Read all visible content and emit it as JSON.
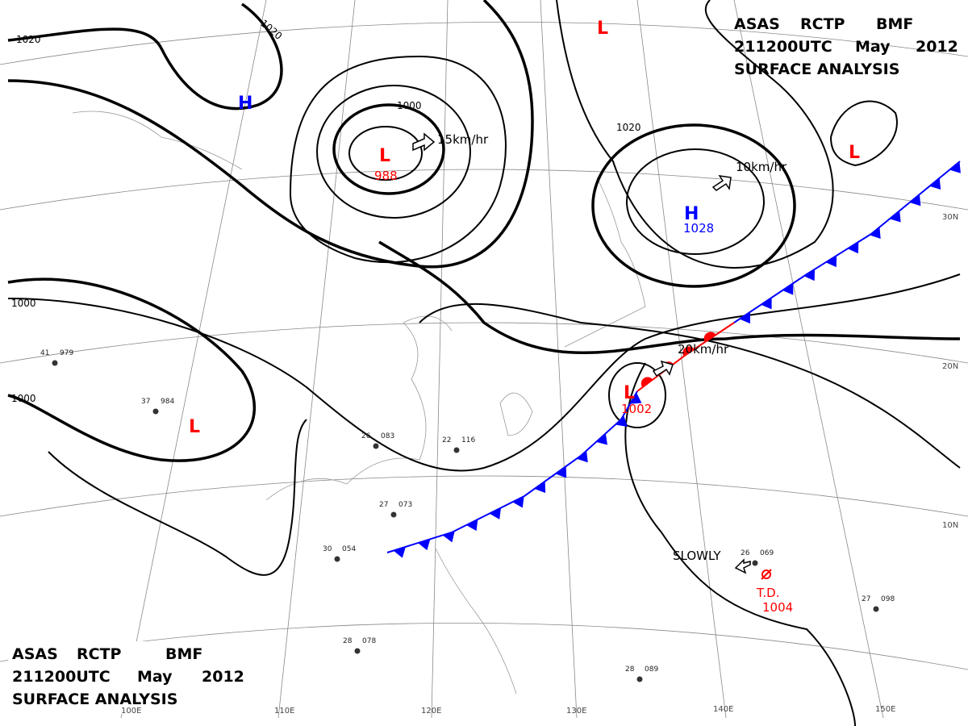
{
  "header": {
    "agency": "ASAS",
    "station": "RCTP",
    "office": "BMF",
    "time": "211200UTC",
    "month": "May",
    "year": "2012",
    "product": "SURFACE ANALYSIS"
  },
  "footer": {
    "agency": "ASAS",
    "station": "RCTP",
    "office": "BMF",
    "time": "211200UTC",
    "month": "May",
    "year": "2012",
    "product": "SURFACE ANALYSIS"
  },
  "pressure_systems": [
    {
      "symbol": "H"
    },
    {
      "symbol": "L",
      "pressure": "988",
      "movement": "15km/hr"
    },
    {
      "symbol": "L"
    },
    {
      "symbol": "H",
      "pressure": "1028",
      "movement": "10km/hr"
    },
    {
      "symbol": "L"
    },
    {
      "symbol": "L"
    },
    {
      "symbol": "L",
      "pressure": "1002",
      "movement": "20km/hr"
    },
    {
      "symbol": "T.D.",
      "pressure": "1004",
      "movement": "SLOWLY"
    }
  ],
  "isobar_labels": [
    "1020",
    "1020",
    "1000",
    "1020",
    "1000",
    "1000"
  ],
  "longitude_labels": [
    "100E",
    "110E",
    "120E",
    "130E",
    "140E",
    "150E"
  ],
  "latitude_labels": [
    "30N",
    "20N",
    "10N"
  ],
  "stations": [
    {
      "temp": "41",
      "pressure": "979"
    },
    {
      "temp": "37",
      "pressure": "984"
    },
    {
      "temp": "26",
      "pressure": "083"
    },
    {
      "temp": "27",
      "pressure": "073"
    },
    {
      "temp": "30",
      "pressure": "054"
    },
    {
      "temp": "22",
      "pressure": "116"
    },
    {
      "temp": "26",
      "pressure": "069"
    },
    {
      "temp": "28",
      "pressure": "089"
    },
    {
      "temp": "27",
      "pressure": "098"
    },
    {
      "temp": "28",
      "pressure": "078"
    }
  ]
}
